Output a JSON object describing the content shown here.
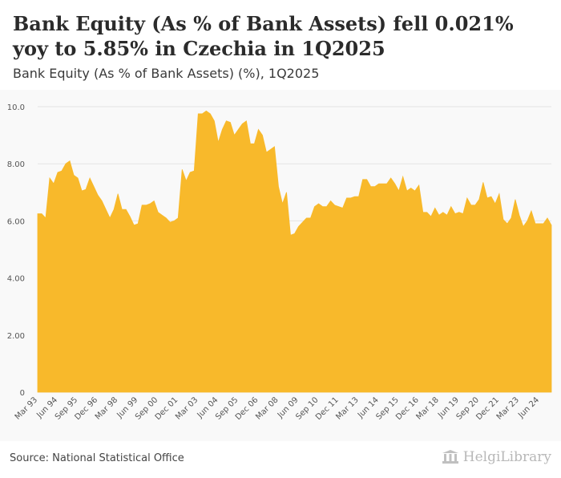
{
  "header": {
    "title": "Bank Equity (As % of Bank Assets) fell 0.021% yoy to 5.85% in Czechia in 1Q2025",
    "subtitle": "Bank Equity (As % of Bank Assets) (%), 1Q2025"
  },
  "footer": {
    "source": "Source: National Statistical Office",
    "logo_text": "HelgiLibrary"
  },
  "colors": {
    "area_fill": "#f8b92b",
    "grid": "#e4e4e4",
    "axis_text": "#555555"
  },
  "chart_data": {
    "type": "area",
    "title": "Bank Equity (As % of Bank Assets) (%), 1Q2025",
    "xlabel": "",
    "ylabel": "",
    "ylim": [
      0,
      10
    ],
    "yticks": [
      "0",
      "2.00",
      "4.00",
      "6.00",
      "8.00",
      "10.0"
    ],
    "ytick_values": [
      0,
      2,
      4,
      6,
      8,
      10
    ],
    "grid": true,
    "x_start": "1Q1993",
    "x_end": "1Q2025",
    "x_tick_labels": [
      "Mar 93",
      "Jun 94",
      "Sep 95",
      "Dec 96",
      "Mar 98",
      "Jun 99",
      "Sep 00",
      "Dec 01",
      "Mar 03",
      "Jun 04",
      "Sep 05",
      "Dec 06",
      "Mar 08",
      "Jun 09",
      "Sep 10",
      "Dec 11",
      "Mar 13",
      "Jun 14",
      "Sep 15",
      "Dec 16",
      "Mar 18",
      "Jun 19",
      "Sep 20",
      "Dec 21",
      "Mar 23",
      "Jun 24"
    ],
    "series": [
      {
        "name": "Bank Equity (As % of Bank Assets)",
        "values": [
          6.25,
          6.25,
          6.1,
          7.5,
          7.3,
          7.7,
          7.75,
          8.0,
          8.1,
          7.6,
          7.5,
          7.05,
          7.1,
          7.5,
          7.2,
          6.9,
          6.7,
          6.4,
          6.1,
          6.4,
          6.95,
          6.4,
          6.4,
          6.15,
          5.85,
          5.9,
          6.55,
          6.55,
          6.6,
          6.7,
          6.3,
          6.2,
          6.1,
          5.95,
          6.0,
          6.1,
          7.8,
          7.4,
          7.7,
          7.75,
          9.75,
          9.75,
          9.85,
          9.75,
          9.5,
          8.75,
          9.2,
          9.5,
          9.45,
          9.0,
          9.2,
          9.4,
          9.5,
          8.7,
          8.7,
          9.2,
          9.0,
          8.4,
          8.5,
          8.6,
          7.2,
          6.6,
          7.0,
          5.5,
          5.55,
          5.8,
          5.95,
          6.1,
          6.1,
          6.5,
          6.6,
          6.5,
          6.5,
          6.7,
          6.55,
          6.5,
          6.45,
          6.8,
          6.8,
          6.85,
          6.85,
          7.45,
          7.45,
          7.2,
          7.2,
          7.3,
          7.3,
          7.3,
          7.5,
          7.3,
          7.05,
          7.55,
          7.05,
          7.15,
          7.05,
          7.25,
          6.3,
          6.3,
          6.15,
          6.45,
          6.2,
          6.3,
          6.2,
          6.5,
          6.25,
          6.3,
          6.25,
          6.8,
          6.55,
          6.55,
          6.75,
          7.35,
          6.8,
          6.85,
          6.6,
          6.95,
          6.05,
          5.9,
          6.1,
          6.75,
          6.2,
          5.8,
          6.0,
          6.35,
          5.9,
          5.9,
          5.9,
          6.1,
          5.85
        ]
      }
    ]
  }
}
